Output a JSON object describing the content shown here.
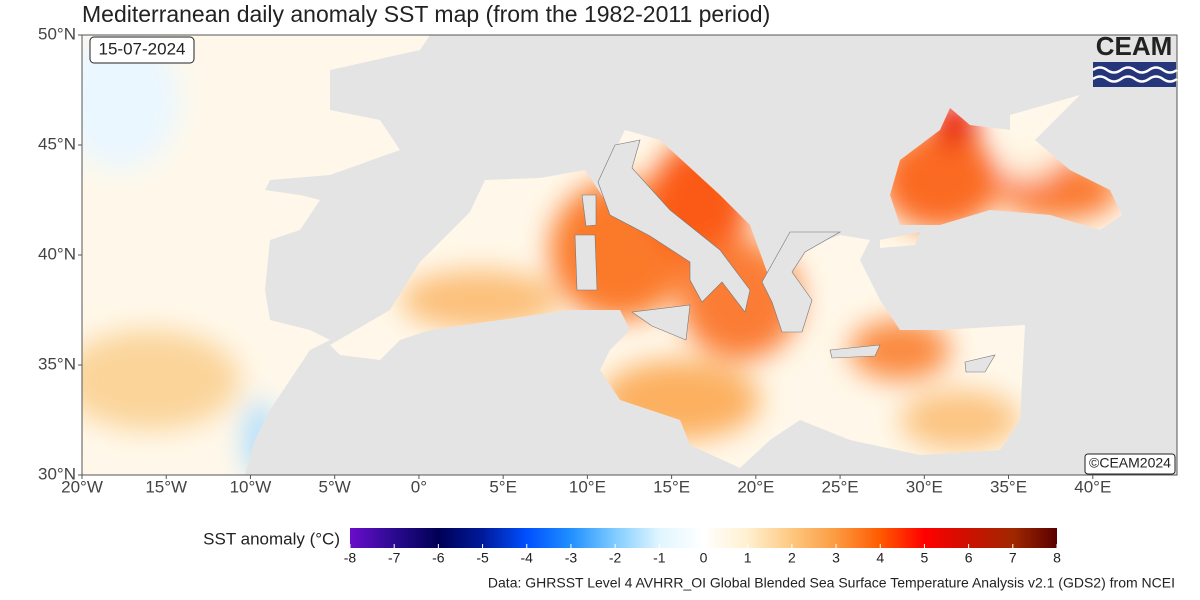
{
  "map": {
    "title": "Mediterranean daily anomaly SST map (from the 1982-2011 period)",
    "date": "15-07-2024",
    "logo": "CEAM",
    "copyright": "©CEAM2024",
    "source": "Data: GHRSST Level 4 AVHRR_OI Global Blended Sea Surface Temperature Analysis v2.1 (GDS2) from NCEI",
    "xlim": [
      -20,
      45
    ],
    "ylim": [
      30,
      50
    ],
    "xticks": [
      {
        "value": -20,
        "label": "20°W"
      },
      {
        "value": -15,
        "label": "15°W"
      },
      {
        "value": -10,
        "label": "10°W"
      },
      {
        "value": -5,
        "label": "5°W"
      },
      {
        "value": 0,
        "label": "0°"
      },
      {
        "value": 5,
        "label": "5°E"
      },
      {
        "value": 10,
        "label": "10°E"
      },
      {
        "value": 15,
        "label": "15°E"
      },
      {
        "value": 20,
        "label": "20°E"
      },
      {
        "value": 25,
        "label": "25°E"
      },
      {
        "value": 30,
        "label": "30°E"
      },
      {
        "value": 35,
        "label": "35°E"
      },
      {
        "value": 40,
        "label": "40°E"
      }
    ],
    "yticks": [
      {
        "value": 30,
        "label": "30°N"
      },
      {
        "value": 35,
        "label": "35°N"
      },
      {
        "value": 40,
        "label": "40°N"
      },
      {
        "value": 45,
        "label": "45°N"
      },
      {
        "value": 50,
        "label": "50°N"
      }
    ],
    "colorbar": {
      "title": "SST anomaly (°C)",
      "lim": [
        -8,
        8
      ],
      "ticks": [
        -8,
        -7,
        -6,
        -5,
        -4,
        -3,
        -2,
        -1,
        0,
        1,
        2,
        3,
        4,
        5,
        6,
        7,
        8
      ],
      "colors": [
        "#6a0dcc",
        "#2a0a90",
        "#000055",
        "#001a9a",
        "#0050ff",
        "#2090ff",
        "#80ccff",
        "#e0f6ff",
        "#ffffff",
        "#fff0d0",
        "#fdc880",
        "#fc9a40",
        "#ff5a00",
        "#ff0000",
        "#cc1000",
        "#a02800",
        "#5a0000"
      ]
    }
  }
}
